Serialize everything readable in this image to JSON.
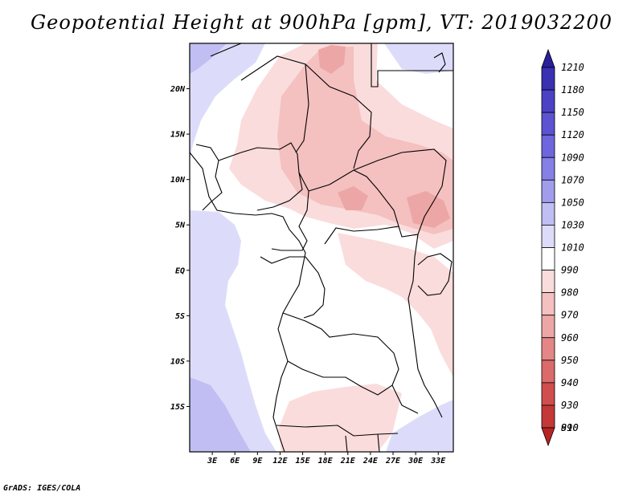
{
  "title": "Geopotential Height at 900hPa [gpm], VT: 2019032200",
  "credit": "GrADS: IGES/COLA",
  "map": {
    "lon_range": [
      0,
      35
    ],
    "lat_range": [
      -20,
      25
    ],
    "lat_ticks": [
      "20N",
      "15N",
      "10N",
      "5N",
      "EQ",
      "5S",
      "10S",
      "15S"
    ],
    "lon_ticks": [
      "3E",
      "6E",
      "9E",
      "12E",
      "15E",
      "18E",
      "21E",
      "24E",
      "27E",
      "30E",
      "33E"
    ],
    "background_color": "#ffffff",
    "boundary_color": "#000000"
  },
  "colorbar": {
    "levels": [
      "1210",
      "1180",
      "1150",
      "1120",
      "1090",
      "1070",
      "1050",
      "1030",
      "1010",
      "990",
      "980",
      "970",
      "960",
      "950",
      "940",
      "930",
      "910",
      "890"
    ],
    "colors": [
      "#2a1f9c",
      "#3a30b2",
      "#4b41c4",
      "#5b53d2",
      "#6e66de",
      "#8580e6",
      "#a19deb",
      "#c0bef2",
      "#dcdcfa",
      "#ffffff",
      "#fadcdc",
      "#f4c0c0",
      "#eda6a6",
      "#e48686",
      "#db6a6a",
      "#d04e4e",
      "#c43838",
      "#b82424"
    ]
  }
}
